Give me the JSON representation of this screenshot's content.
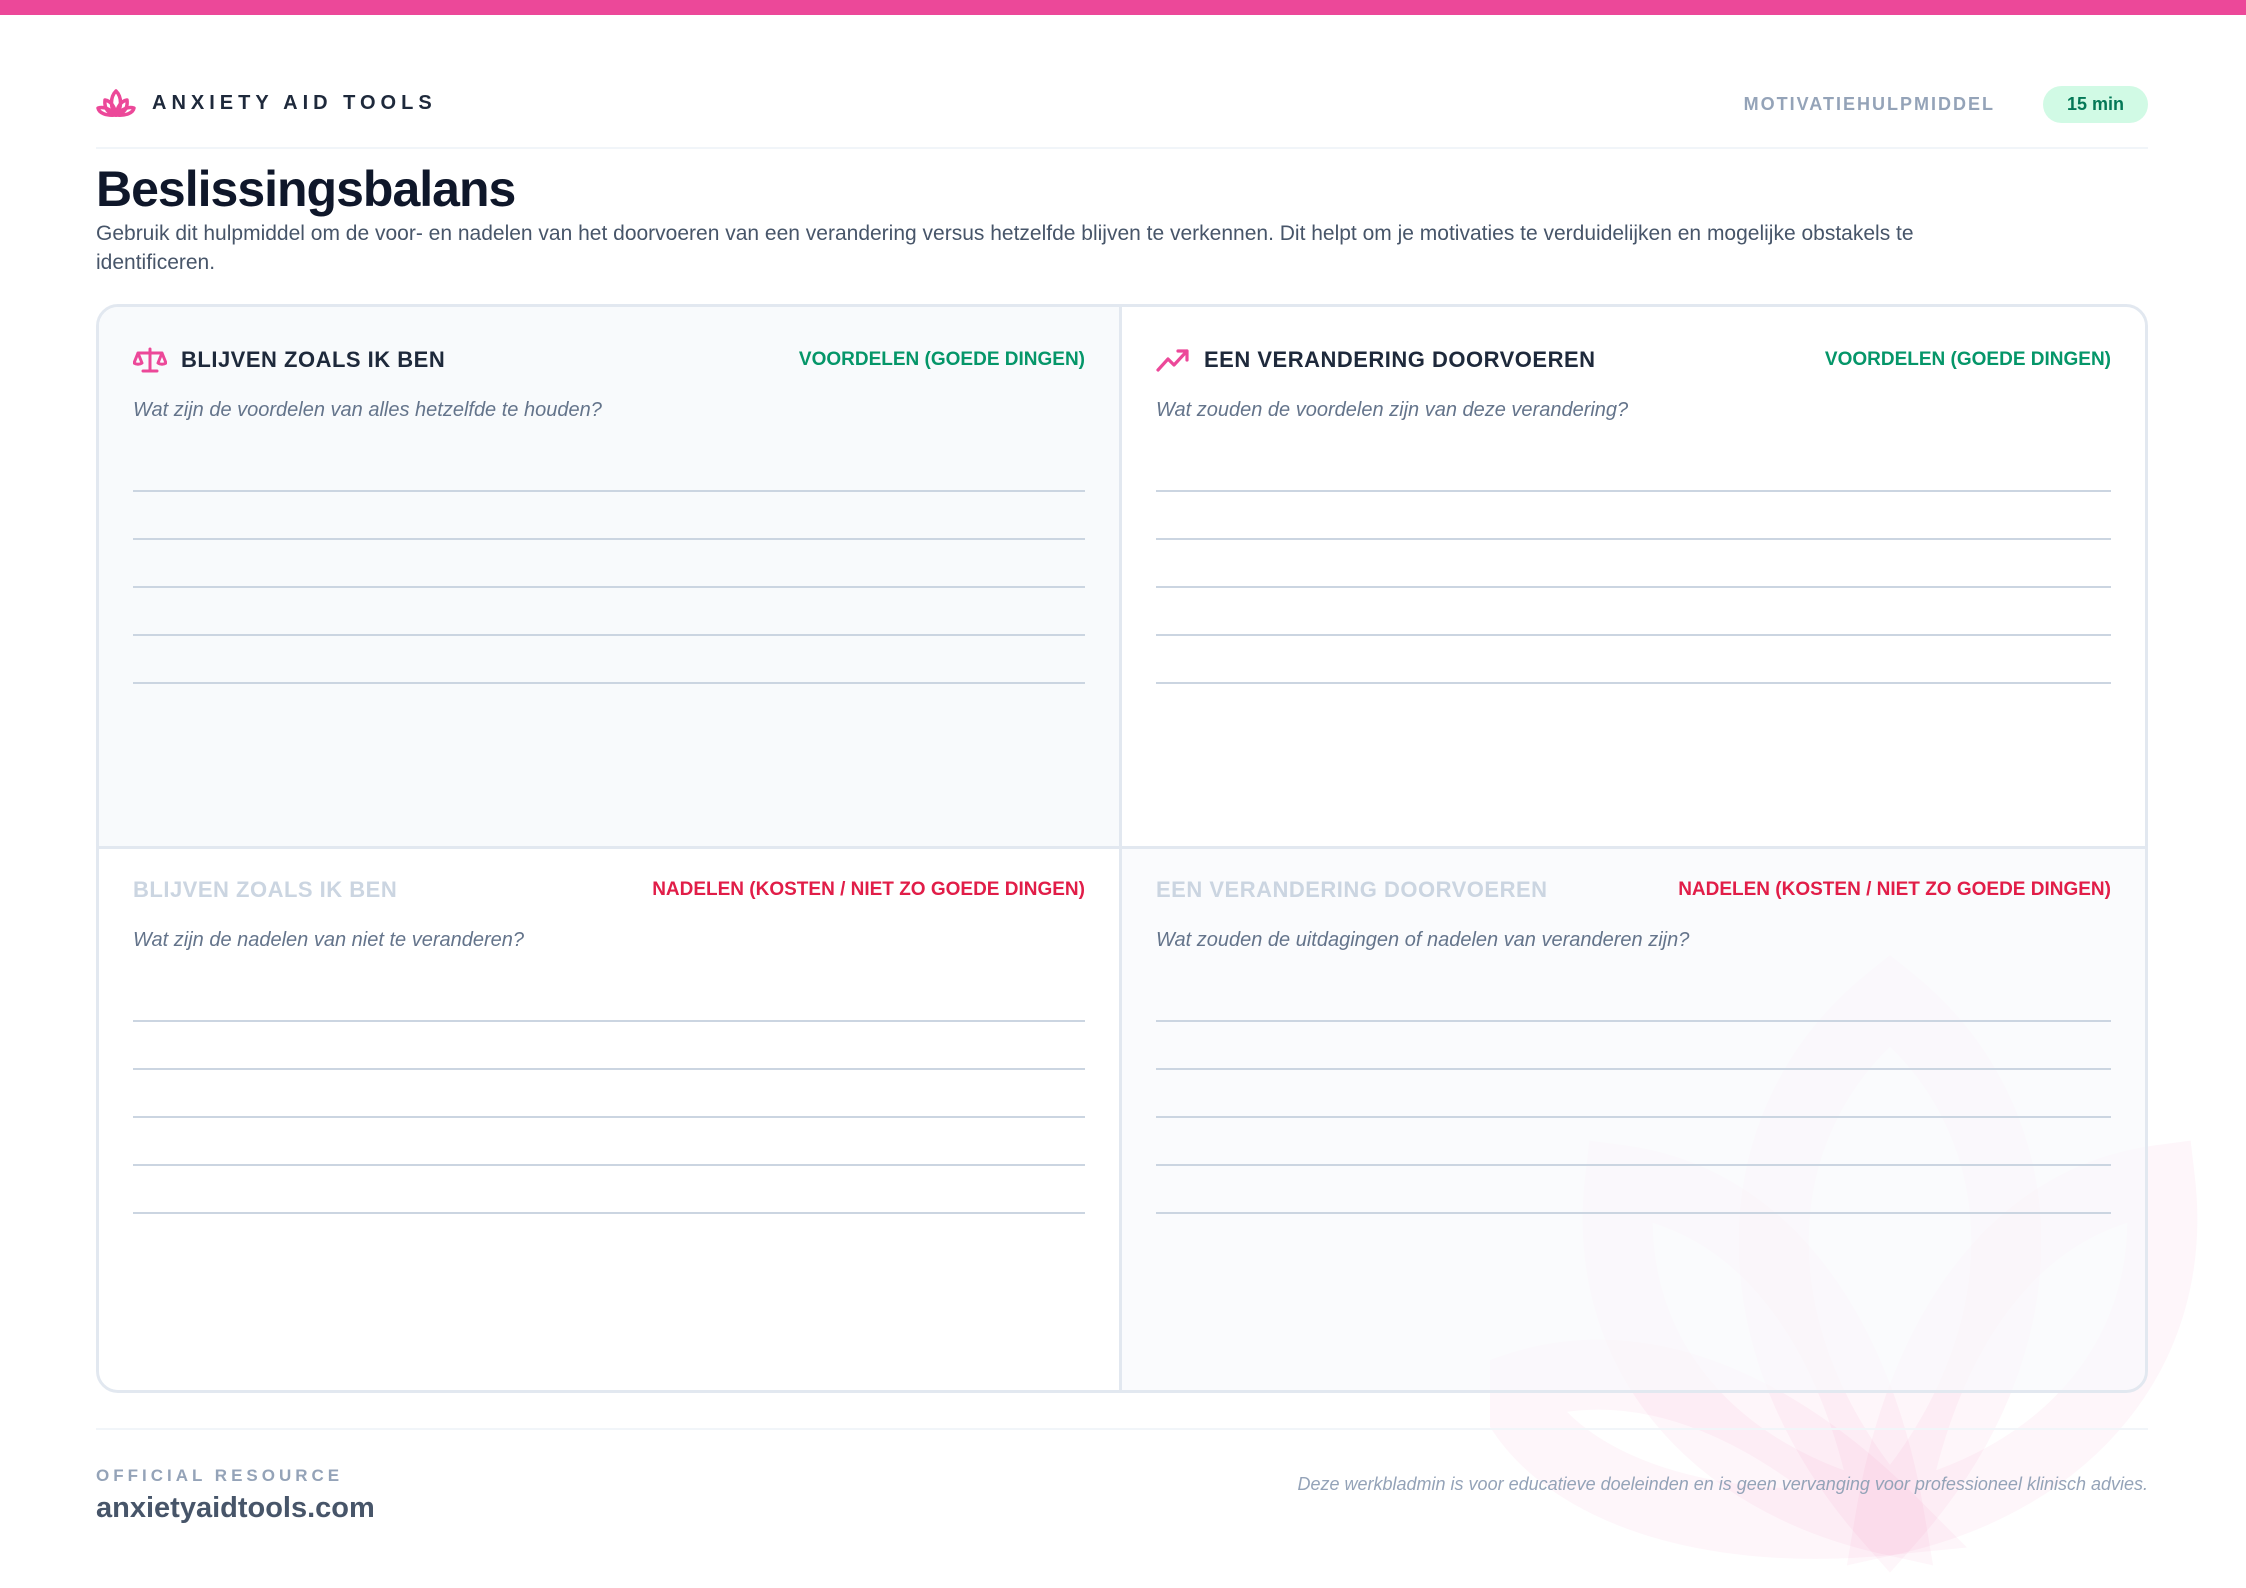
{
  "colors": {
    "accent": "#ec4899",
    "pro": "#059669",
    "con": "#e11d48",
    "badge_bg": "#d1fae5",
    "badge_text": "#047857"
  },
  "header": {
    "brand": "ANXIETY AID TOOLS",
    "brand_icon": "lotus-icon",
    "category": "MOTIVATIEHULPMIDDEL",
    "duration": "15 min"
  },
  "title": "Beslissingsbalans",
  "description": "Gebruik dit hulpmiddel om de voor- en nadelen van het doorvoeren van een verandering versus hetzelfde blijven te verkennen. Dit helpt om je motivaties te verduidelijken en mogelijke obstakels te identificeren.",
  "quadrants": [
    {
      "title": "BLIJVEN ZOALS IK BEN",
      "icon": "scale-icon",
      "tag": "VOORDELEN (GOEDE DINGEN)",
      "question": "Wat zijn de voordelen van alles hetzelfde te houden?"
    },
    {
      "title": "EEN VERANDERING DOORVOEREN",
      "icon": "trending-up-icon",
      "tag": "VOORDELEN (GOEDE DINGEN)",
      "question": "Wat zouden de voordelen zijn van deze verandering?"
    },
    {
      "title": "BLIJVEN ZOALS IK BEN",
      "tag": "NADELEN (KOSTEN / NIET ZO GOEDE DINGEN)",
      "question": "Wat zijn de nadelen van niet te veranderen?"
    },
    {
      "title": "EEN VERANDERING DOORVOEREN",
      "tag": "NADELEN (KOSTEN / NIET ZO GOEDE DINGEN)",
      "question": "Wat zouden de uitdagingen of nadelen van veranderen zijn?"
    }
  ],
  "footer": {
    "label": "OFFICIAL RESOURCE",
    "site": "anxietyaidtools.com",
    "disclaimer": "Deze werkbladmin is voor educatieve doeleinden en is geen vervanging voor professioneel klinisch advies."
  }
}
